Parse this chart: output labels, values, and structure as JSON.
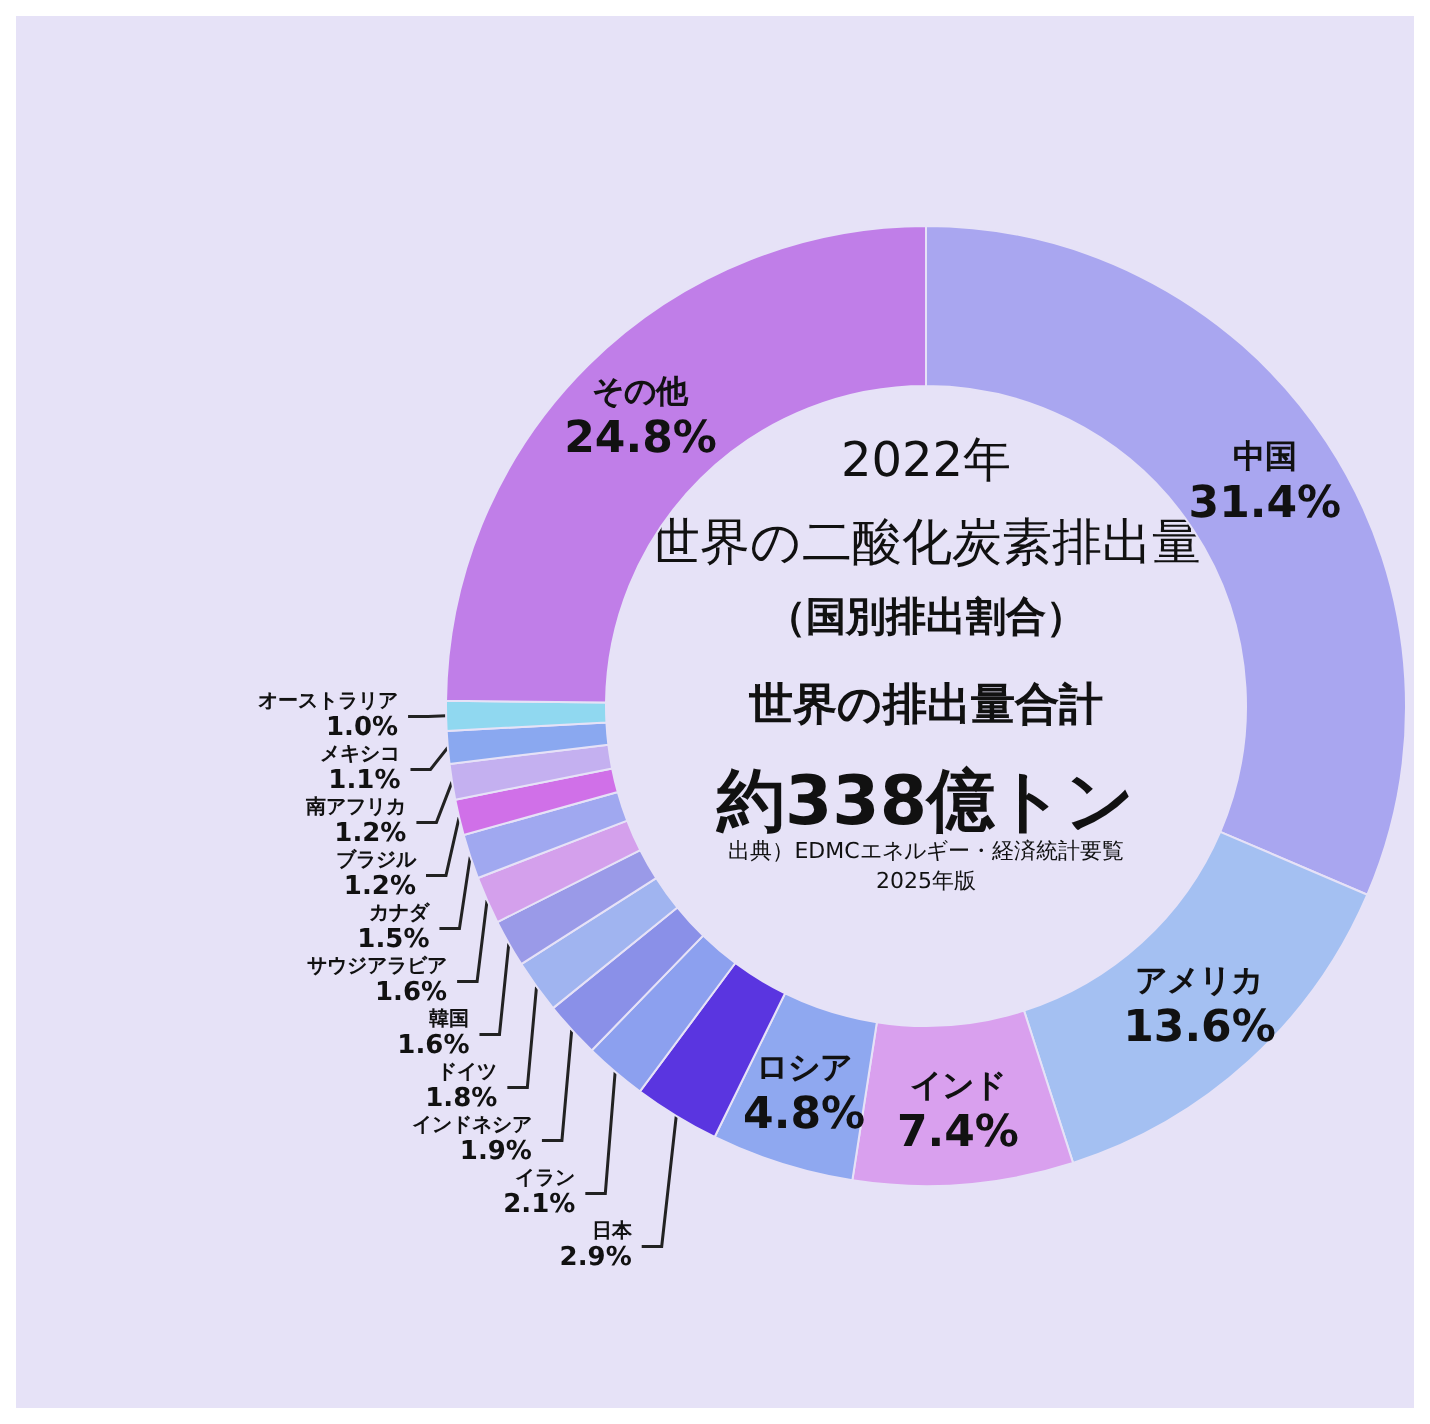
{
  "chart_data": {
    "type": "donut",
    "title": "2022年",
    "subtitle": "世界の二酸化炭素排出量",
    "categories": [
      "中国",
      "アメリカ",
      "インド",
      "ロシア",
      "日本",
      "イラン",
      "インドネシア",
      "ドイツ",
      "韓国",
      "サウジアラビア",
      "カナダ",
      "ブラジル",
      "南アフリカ",
      "メキシコ",
      "オーストラリア",
      "その他"
    ],
    "values": [
      31.4,
      13.6,
      7.4,
      4.8,
      2.9,
      2.1,
      1.9,
      1.8,
      1.6,
      1.6,
      1.5,
      1.2,
      1.2,
      1.1,
      1.0,
      24.8
    ],
    "value_labels": [
      "31.4%",
      "13.6%",
      "7.4%",
      "4.8%",
      "2.9%",
      "2.1%",
      "1.9%",
      "1.8%",
      "1.6%",
      "1.6%",
      "1.5%",
      "1.2%",
      "1.2%",
      "1.1%",
      "1.0%",
      "24.8%"
    ],
    "colors": [
      "#a9a6f0",
      "#a4c0f2",
      "#d9a0ee",
      "#8fa8f0",
      "#5a35e0",
      "#8ca0ef",
      "#8a90e8",
      "#a0b4f0",
      "#9a9ae8",
      "#d4a0ec",
      "#a0a8f0",
      "#d070e8",
      "#c4b0f0",
      "#8aa8f0",
      "#90d8f0",
      "#c07ee8"
    ],
    "annotations": [
      "（国別排出割合）",
      "世界の排出量合計",
      "約338億トン",
      "出典）EDMCエネルギー・経済統計要覧",
      "2025年版"
    ]
  }
}
